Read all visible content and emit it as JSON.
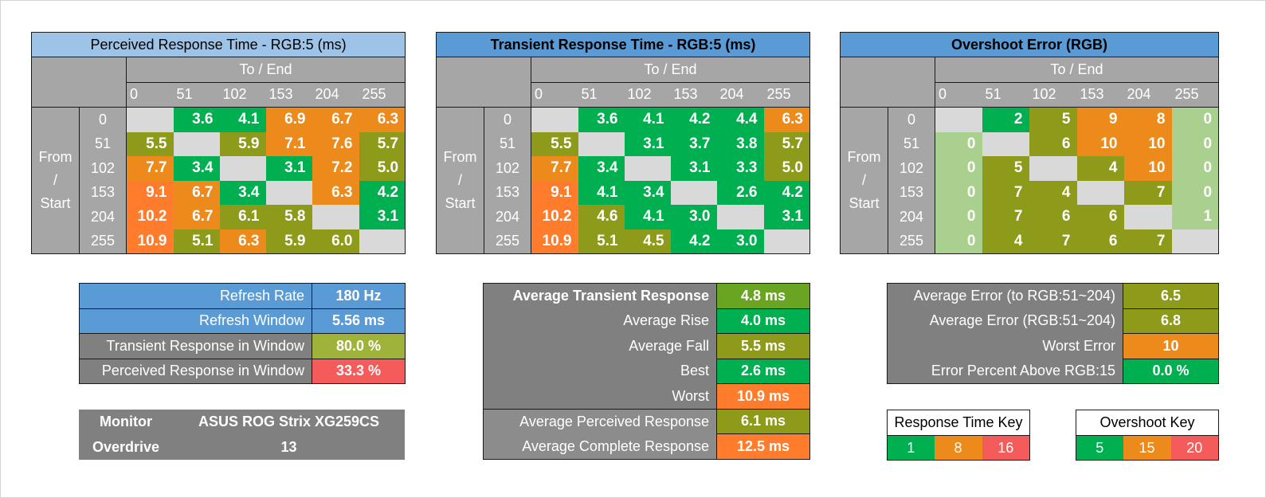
{
  "colors": {
    "green": "#00b050",
    "lightgreen": "#a9d08e",
    "olive": "#8e9a1a",
    "orange": "#ec8a1c",
    "deeporange": "#ff7c2c",
    "red": "#f45b5b",
    "olivegreen": "#6aa423",
    "gray": "#808080",
    "lightgray": "#a6a6a6",
    "blue": "#5b9bd5",
    "lightblue": "#9dc3e6",
    "yellowgreen": "#9fb23a"
  },
  "matrices": [
    {
      "title": "Perceived Response Time - RGB:5 (ms)",
      "to_label": "To / End",
      "from_label": [
        "From",
        "/",
        "Start"
      ],
      "levels": [
        "0",
        "51",
        "102",
        "153",
        "204",
        "255"
      ],
      "rows": [
        [
          null,
          "3.6",
          "4.1",
          "6.9",
          "6.7",
          "6.3"
        ],
        [
          "5.5",
          null,
          "5.9",
          "7.1",
          "7.6",
          "5.7"
        ],
        [
          "7.7",
          "3.4",
          null,
          "3.1",
          "7.2",
          "5.0"
        ],
        [
          "9.1",
          "6.7",
          "3.4",
          null,
          "6.3",
          "4.2"
        ],
        [
          "10.2",
          "6.7",
          "6.1",
          "5.8",
          null,
          "3.1"
        ],
        [
          "10.9",
          "5.1",
          "6.3",
          "5.9",
          "6.0",
          null
        ]
      ]
    },
    {
      "title": "Transient Response Time - RGB:5 (ms)",
      "to_label": "To / End",
      "from_label": [
        "From",
        "/",
        "Start"
      ],
      "levels": [
        "0",
        "51",
        "102",
        "153",
        "204",
        "255"
      ],
      "rows": [
        [
          null,
          "3.6",
          "4.1",
          "4.2",
          "4.4",
          "6.3"
        ],
        [
          "5.5",
          null,
          "3.1",
          "3.7",
          "3.8",
          "5.7"
        ],
        [
          "7.7",
          "3.4",
          null,
          "3.1",
          "3.3",
          "5.0"
        ],
        [
          "9.1",
          "4.1",
          "3.4",
          null,
          "2.6",
          "4.2"
        ],
        [
          "10.2",
          "4.6",
          "4.1",
          "3.0",
          null,
          "3.1"
        ],
        [
          "10.9",
          "5.1",
          "4.5",
          "4.2",
          "3.0",
          null
        ]
      ]
    },
    {
      "title": "Overshoot Error (RGB)",
      "to_label": "To / End",
      "from_label": [
        "From",
        "/",
        "Start"
      ],
      "levels": [
        "0",
        "51",
        "102",
        "153",
        "204",
        "255"
      ],
      "rows": [
        [
          null,
          "2",
          "5",
          "9",
          "8",
          "0"
        ],
        [
          "0",
          null,
          "6",
          "10",
          "10",
          "0"
        ],
        [
          "0",
          "5",
          null,
          "4",
          "10",
          "0"
        ],
        [
          "0",
          "7",
          "4",
          null,
          "7",
          "0"
        ],
        [
          "0",
          "7",
          "6",
          "6",
          null,
          "1"
        ],
        [
          "0",
          "4",
          "7",
          "6",
          "7",
          null
        ]
      ]
    }
  ],
  "refresh": {
    "rows": [
      {
        "label": "Refresh Rate",
        "value": "180 Hz"
      },
      {
        "label": "Refresh Window",
        "value": "5.56 ms"
      },
      {
        "label": "Transient Response in Window",
        "value": "80.0 %"
      },
      {
        "label": "Perceived Response in Window",
        "value": "33.3 %"
      }
    ]
  },
  "monitor": {
    "monitor_label": "Monitor",
    "monitor_value": "ASUS ROG Strix XG259CS",
    "overdrive_label": "Overdrive",
    "overdrive_value": "13"
  },
  "transient_stats": {
    "rows": [
      {
        "label": "Average Transient Response",
        "value": "4.8 ms"
      },
      {
        "label": "Average Rise",
        "value": "4.0 ms"
      },
      {
        "label": "Average Fall",
        "value": "5.5 ms"
      },
      {
        "label": "Best",
        "value": "2.6 ms"
      },
      {
        "label": "Worst",
        "value": "10.9 ms"
      },
      {
        "label": "Average Perceived Response",
        "value": "6.1 ms"
      },
      {
        "label": "Average Complete Response",
        "value": "12.5 ms"
      }
    ]
  },
  "overshoot_stats": {
    "rows": [
      {
        "label": "Average Error (to RGB:51~204)",
        "value": "6.5"
      },
      {
        "label": "Average Error (RGB:51~204)",
        "value": "6.8"
      },
      {
        "label": "Worst Error",
        "value": "10"
      },
      {
        "label": "Error Percent Above RGB:15",
        "value": "0.0 %"
      }
    ]
  },
  "response_key": {
    "title": "Response Time Key",
    "values": [
      "1",
      "8",
      "16"
    ]
  },
  "overshoot_key": {
    "title": "Overshoot Key",
    "values": [
      "5",
      "15",
      "20"
    ]
  }
}
